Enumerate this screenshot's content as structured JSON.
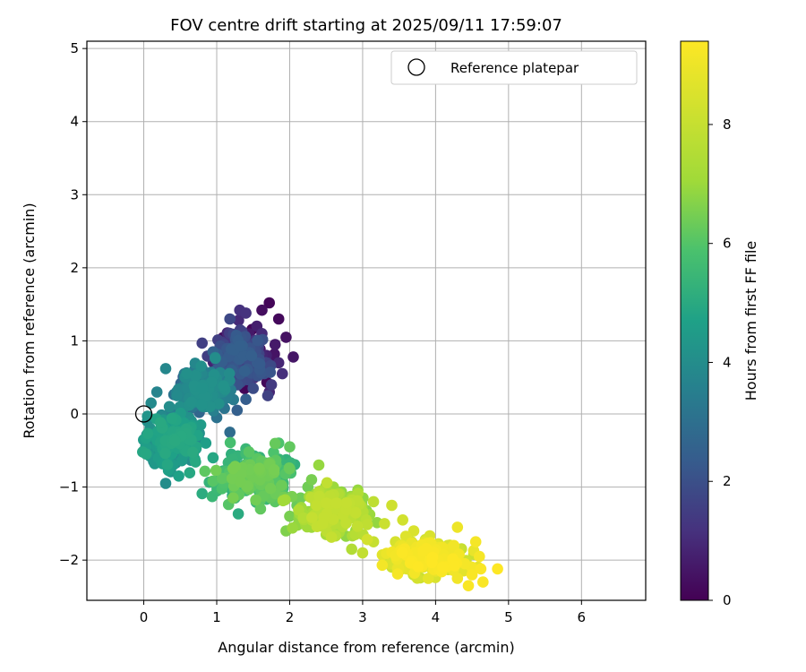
{
  "chart_data": {
    "type": "scatter",
    "title": "FOV centre drift starting at 2025/09/11 17:59:07",
    "xlabel": "Angular distance from reference (arcmin)",
    "ylabel": "Rotation from reference (arcmin)",
    "xlim": [
      -0.78,
      6.88
    ],
    "ylim": [
      -2.55,
      5.1
    ],
    "xticks": [
      0,
      1,
      2,
      3,
      4,
      5,
      6
    ],
    "yticks": [
      -2,
      -1,
      0,
      1,
      2,
      3,
      4,
      5
    ],
    "grid": true,
    "colormap": "viridis",
    "colorbar": {
      "label": "Hours from first FF file",
      "range": [
        0,
        9.4
      ],
      "ticks": [
        0,
        2,
        4,
        6,
        8
      ]
    },
    "legend": {
      "position": "upper right",
      "entries": [
        {
          "label": "Reference platepar",
          "marker": "open-circle",
          "color": "#000000"
        }
      ]
    },
    "reference_point": {
      "x": 0.0,
      "y": 0.0
    },
    "series": [
      {
        "marker": "filled-circle",
        "note_clusters": [
          {
            "t_range": [
              0.0,
              2.5
            ],
            "x_center": 1.35,
            "y_center": 0.75,
            "x_spread": 0.3,
            "y_spread": 0.32
          },
          {
            "t_range": [
              2.5,
              4.2
            ],
            "x_center": 0.8,
            "y_center": 0.35,
            "x_spread": 0.28,
            "y_spread": 0.25
          },
          {
            "t_range": [
              3.5,
              5.0
            ],
            "x_center": 0.4,
            "y_center": -0.35,
            "x_spread": 0.3,
            "y_spread": 0.28
          },
          {
            "t_range": [
              5.0,
              6.5
            ],
            "x_center": 1.5,
            "y_center": -0.85,
            "x_spread": 0.45,
            "y_spread": 0.25
          },
          {
            "t_range": [
              6.5,
              8.0
            ],
            "x_center": 2.6,
            "y_center": -1.35,
            "x_spread": 0.4,
            "y_spread": 0.25
          },
          {
            "t_range": [
              8.0,
              9.4
            ],
            "x_center": 3.9,
            "y_center": -1.95,
            "x_spread": 0.45,
            "y_spread": 0.2
          }
        ],
        "points": [
          [
            1.72,
            1.52,
            0.1
          ],
          [
            1.62,
            1.42,
            0.3
          ],
          [
            1.85,
            1.3,
            0.2
          ],
          [
            1.95,
            1.05,
            0.4
          ],
          [
            2.05,
            0.78,
            0.5
          ],
          [
            1.8,
            0.95,
            0.6
          ],
          [
            1.55,
            1.2,
            0.7
          ],
          [
            1.4,
            1.38,
            1.2
          ],
          [
            1.3,
            1.28,
            1.0
          ],
          [
            1.2,
            1.05,
            1.3
          ],
          [
            1.45,
            1.0,
            0.9
          ],
          [
            1.68,
            0.8,
            0.8
          ],
          [
            1.9,
            0.55,
            1.1
          ],
          [
            1.75,
            0.4,
            1.4
          ],
          [
            1.58,
            0.62,
            1.5
          ],
          [
            1.35,
            0.85,
            1.6
          ],
          [
            1.1,
            0.95,
            1.7
          ],
          [
            1.25,
            0.55,
            1.8
          ],
          [
            1.5,
            0.35,
            1.9
          ],
          [
            1.65,
            0.55,
            2.0
          ],
          [
            1.05,
            0.75,
            2.1
          ],
          [
            0.98,
            0.5,
            2.2
          ],
          [
            1.15,
            0.3,
            2.3
          ],
          [
            1.4,
            0.2,
            2.4
          ],
          [
            1.28,
            0.05,
            2.5
          ],
          [
            0.95,
            0.85,
            2.6
          ],
          [
            0.9,
            0.25,
            2.7
          ],
          [
            1.2,
            0.62,
            2.2
          ],
          [
            1.55,
            0.85,
            1.3
          ],
          [
            1.85,
            0.7,
            0.9
          ],
          [
            1.62,
            1.1,
            1.0
          ],
          [
            1.32,
            1.15,
            1.5
          ],
          [
            1.18,
            1.3,
            1.8
          ],
          [
            1.45,
            0.7,
            2.0
          ],
          [
            1.7,
            0.25,
            1.6
          ],
          [
            0.8,
            0.62,
            3.0
          ],
          [
            0.75,
            0.4,
            3.2
          ],
          [
            0.6,
            0.48,
            3.4
          ],
          [
            0.45,
            0.3,
            3.6
          ],
          [
            0.3,
            0.62,
            3.8
          ],
          [
            0.18,
            0.3,
            3.7
          ],
          [
            0.55,
            0.15,
            3.5
          ],
          [
            0.85,
            0.1,
            3.3
          ],
          [
            1.0,
            -0.05,
            3.1
          ],
          [
            1.18,
            -0.25,
            2.9
          ],
          [
            0.35,
            0.1,
            4.0
          ],
          [
            0.1,
            0.15,
            3.9
          ],
          [
            0.05,
            -0.1,
            4.1
          ],
          [
            0.12,
            -0.35,
            4.2
          ],
          [
            0.25,
            -0.55,
            4.3
          ],
          [
            0.4,
            -0.7,
            4.5
          ],
          [
            0.55,
            -0.45,
            4.4
          ],
          [
            0.7,
            -0.25,
            4.2
          ],
          [
            0.85,
            -0.4,
            4.6
          ],
          [
            0.7,
            -0.62,
            4.8
          ],
          [
            0.95,
            -0.6,
            4.9
          ],
          [
            1.05,
            -0.85,
            5.0
          ],
          [
            0.3,
            -0.95,
            4.0
          ],
          [
            0.15,
            -0.68,
            4.4
          ],
          [
            0.05,
            -0.55,
            4.5
          ],
          [
            0.48,
            -0.85,
            4.7
          ],
          [
            0.62,
            -0.05,
            4.1
          ],
          [
            0.4,
            -0.2,
            4.3
          ],
          [
            0.22,
            -0.08,
            3.9
          ],
          [
            0.78,
            -0.15,
            4.5
          ],
          [
            1.2,
            -0.55,
            5.2
          ],
          [
            1.35,
            -0.75,
            5.4
          ],
          [
            1.55,
            -0.6,
            5.6
          ],
          [
            1.7,
            -0.88,
            5.8
          ],
          [
            1.9,
            -1.0,
            6.0
          ],
          [
            1.4,
            -1.05,
            5.7
          ],
          [
            1.25,
            -1.15,
            5.5
          ],
          [
            1.6,
            -1.3,
            6.2
          ],
          [
            1.8,
            -1.2,
            6.1
          ],
          [
            2.0,
            -0.75,
            6.3
          ],
          [
            2.15,
            -1.15,
            6.4
          ],
          [
            2.0,
            -1.4,
            6.5
          ],
          [
            1.95,
            -1.6,
            6.6
          ],
          [
            2.3,
            -0.9,
            6.5
          ],
          [
            2.45,
            -1.2,
            6.8
          ],
          [
            2.4,
            -0.7,
            6.9
          ],
          [
            2.6,
            -1.0,
            7.0
          ],
          [
            2.55,
            -1.4,
            7.1
          ],
          [
            2.7,
            -1.3,
            7.2
          ],
          [
            2.85,
            -1.15,
            7.3
          ],
          [
            2.3,
            -1.55,
            7.0
          ],
          [
            2.5,
            -1.65,
            7.2
          ],
          [
            2.75,
            -1.5,
            7.5
          ],
          [
            2.9,
            -1.65,
            7.6
          ],
          [
            3.05,
            -1.45,
            7.7
          ],
          [
            2.45,
            -1.4,
            7.1
          ],
          [
            3.15,
            -1.2,
            7.8
          ],
          [
            3.0,
            -1.9,
            7.9
          ],
          [
            2.85,
            -1.85,
            7.5
          ],
          [
            3.15,
            -1.75,
            8.0
          ],
          [
            3.3,
            -1.5,
            8.1
          ],
          [
            3.4,
            -1.25,
            8.2
          ],
          [
            3.55,
            -1.45,
            8.3
          ],
          [
            3.45,
            -1.75,
            8.4
          ],
          [
            3.3,
            -1.95,
            8.3
          ],
          [
            3.6,
            -1.85,
            8.6
          ],
          [
            3.7,
            -1.6,
            8.5
          ],
          [
            3.38,
            -2.05,
            8.5
          ],
          [
            3.85,
            -1.75,
            8.7
          ],
          [
            4.0,
            -1.85,
            8.9
          ],
          [
            4.1,
            -2.0,
            9.0
          ],
          [
            4.25,
            -1.8,
            9.1
          ],
          [
            4.4,
            -2.05,
            9.2
          ],
          [
            4.3,
            -2.25,
            9.1
          ],
          [
            4.5,
            -2.2,
            9.3
          ],
          [
            4.6,
            -1.95,
            9.2
          ],
          [
            4.45,
            -2.35,
            9.3
          ],
          [
            4.65,
            -2.3,
            9.3
          ],
          [
            4.85,
            -2.12,
            9.4
          ],
          [
            4.55,
            -1.75,
            9.2
          ],
          [
            4.3,
            -1.55,
            9.0
          ],
          [
            4.0,
            -2.15,
            8.9
          ],
          [
            3.9,
            -2.25,
            8.8
          ],
          [
            4.2,
            -2.05,
            9.0
          ],
          [
            4.62,
            -2.12,
            9.3
          ],
          [
            2.0,
            -0.45,
            6.2
          ],
          [
            1.85,
            -0.4,
            5.9
          ],
          [
            2.25,
            -1.0,
            6.4
          ],
          [
            2.1,
            -1.25,
            6.3
          ],
          [
            1.7,
            -1.05,
            5.6
          ]
        ]
      }
    ]
  }
}
